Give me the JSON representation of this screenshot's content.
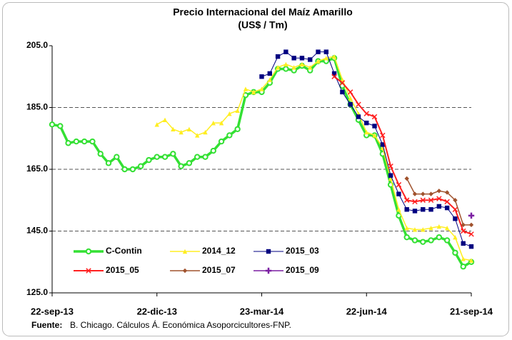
{
  "chart_data": {
    "type": "line",
    "title": "Precio Internacional del Maíz Amarillo",
    "subtitle": "(US$ / Tm)",
    "categories": [
      "22-sep-13",
      null,
      null,
      null,
      null,
      null,
      null,
      null,
      null,
      null,
      null,
      null,
      null,
      "22-dic-13",
      null,
      null,
      null,
      null,
      null,
      null,
      null,
      null,
      null,
      null,
      null,
      null,
      "23-mar-14",
      null,
      null,
      null,
      null,
      null,
      null,
      null,
      null,
      null,
      null,
      null,
      null,
      "22-jun-14",
      null,
      null,
      null,
      null,
      null,
      null,
      null,
      null,
      null,
      null,
      null,
      null,
      "21-sep-14"
    ],
    "series": [
      {
        "name": "C-Contin",
        "color": "#33e033",
        "marker": "circle",
        "width": 3.5,
        "values": [
          179.5,
          179,
          173.5,
          174,
          174,
          174,
          170,
          167,
          169,
          165,
          165,
          166,
          168,
          169,
          169,
          170,
          166,
          167,
          169,
          169,
          171,
          174,
          176,
          178,
          189,
          190,
          190,
          193,
          197.5,
          197.5,
          197,
          198.5,
          197,
          200,
          200,
          201,
          192,
          186,
          181,
          176,
          176,
          170,
          160,
          150,
          143,
          142,
          141.5,
          142,
          143,
          142,
          138,
          133.5,
          135
        ]
      },
      {
        "name": "2014_12",
        "color": "#ffee22",
        "marker": "triangle",
        "width": 1.5,
        "values": [
          null,
          null,
          null,
          null,
          null,
          null,
          null,
          null,
          null,
          null,
          null,
          null,
          null,
          179.5,
          181,
          178,
          177,
          178,
          176,
          177,
          180,
          180,
          183,
          184,
          191,
          190,
          191,
          194,
          198,
          199,
          198,
          199,
          198,
          200,
          201,
          201.5,
          194,
          188,
          183,
          177,
          176,
          172,
          162,
          152,
          146,
          145.5,
          145.5,
          146,
          146.5,
          146,
          143,
          136,
          135.5
        ]
      },
      {
        "name": "2015_03",
        "color": "#000080",
        "marker": "square",
        "width": 1,
        "values": [
          null,
          null,
          null,
          null,
          null,
          null,
          null,
          null,
          null,
          null,
          null,
          null,
          null,
          null,
          null,
          null,
          null,
          null,
          null,
          null,
          null,
          null,
          null,
          null,
          null,
          null,
          195,
          196,
          201.5,
          203,
          201,
          201,
          200.5,
          203,
          203,
          196,
          190,
          186,
          182,
          180,
          179,
          173,
          163,
          157,
          152,
          151.5,
          152,
          152,
          153,
          152.5,
          149,
          141,
          140
        ]
      },
      {
        "name": "2015_05",
        "color": "#ff2020",
        "marker": "cross",
        "width": 2,
        "values": [
          null,
          null,
          null,
          null,
          null,
          null,
          null,
          null,
          null,
          null,
          null,
          null,
          null,
          null,
          null,
          null,
          null,
          null,
          null,
          null,
          null,
          null,
          null,
          null,
          null,
          null,
          null,
          null,
          null,
          null,
          null,
          null,
          null,
          null,
          null,
          195,
          193,
          190,
          186,
          183,
          182,
          176,
          166,
          160,
          155,
          154.5,
          155,
          155,
          155.5,
          154.5,
          152,
          145,
          144
        ]
      },
      {
        "name": "2015_07",
        "color": "#a0522d",
        "marker": "diamond",
        "width": 1.5,
        "values": [
          null,
          null,
          null,
          null,
          null,
          null,
          null,
          null,
          null,
          null,
          null,
          null,
          null,
          null,
          null,
          null,
          null,
          null,
          null,
          null,
          null,
          null,
          null,
          null,
          null,
          null,
          null,
          null,
          null,
          null,
          null,
          null,
          null,
          null,
          null,
          null,
          null,
          null,
          null,
          null,
          null,
          null,
          null,
          null,
          162,
          157,
          157,
          157,
          158,
          157.5,
          155,
          147,
          147
        ]
      },
      {
        "name": "2015_09",
        "color": "#7b1fa2",
        "marker": "plus",
        "width": 1.5,
        "values": [
          null,
          null,
          null,
          null,
          null,
          null,
          null,
          null,
          null,
          null,
          null,
          null,
          null,
          null,
          null,
          null,
          null,
          null,
          null,
          null,
          null,
          null,
          null,
          null,
          null,
          null,
          null,
          null,
          null,
          null,
          null,
          null,
          null,
          null,
          null,
          null,
          null,
          null,
          null,
          null,
          null,
          null,
          null,
          null,
          null,
          null,
          null,
          null,
          null,
          null,
          null,
          null,
          150
        ]
      }
    ],
    "ylim": [
      125,
      205
    ],
    "yticks": [
      {
        "value": 125,
        "label": "125.0"
      },
      {
        "value": 145,
        "label": "145.0"
      },
      {
        "value": 165,
        "label": "165.0"
      },
      {
        "value": 185,
        "label": "185.0"
      },
      {
        "value": 205,
        "label": "205.0"
      }
    ],
    "grid": true,
    "source_label": "Fuente:",
    "source": "B. Chicago. Cálculos Á. Económica Asoporcicultores-FNP."
  }
}
